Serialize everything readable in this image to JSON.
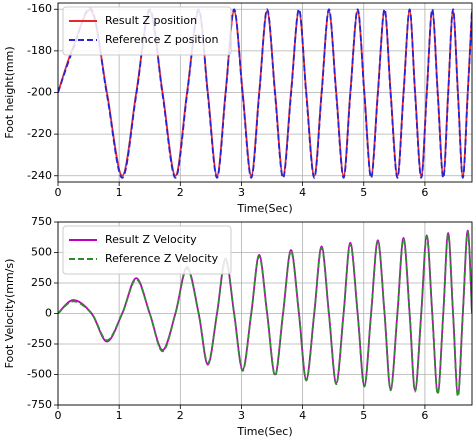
{
  "chart_data": [
    {
      "type": "line",
      "ylabel": "Foot height(mm)",
      "xlabel": "Time(Sec)",
      "x": [
        0,
        0.25,
        0.55,
        0.8,
        1.05,
        1.28,
        1.5,
        1.71,
        1.92,
        2.11,
        2.3,
        2.45,
        2.6,
        2.74,
        2.88,
        3.02,
        3.16,
        3.29,
        3.42,
        3.55,
        3.68,
        3.81,
        3.94,
        4.06,
        4.19,
        4.31,
        4.43,
        4.55,
        4.67,
        4.78,
        4.9,
        5.01,
        5.12,
        5.23,
        5.34,
        5.44,
        5.55,
        5.65,
        5.75,
        5.84,
        5.94,
        6.03,
        6.12,
        6.21,
        6.3,
        6.38,
        6.46,
        6.54,
        6.62,
        6.7,
        6.77
      ],
      "series": [
        {
          "name": "Result Z position",
          "color": "#e8262b",
          "dash": false,
          "values": [
            -200,
            -178,
            -161,
            -200,
            -240,
            -200,
            -161,
            -200,
            -240,
            -200,
            -161,
            -200,
            -240,
            -200,
            -161,
            -200,
            -240,
            -200,
            -161,
            -200,
            -240,
            -200,
            -161,
            -200,
            -240,
            -200,
            -161,
            -200,
            -240,
            -200,
            -161,
            -200,
            -240,
            -200,
            -161,
            -200,
            -240,
            -200,
            -161,
            -200,
            -240,
            -200,
            -161,
            -200,
            -240,
            -200,
            -161,
            -200,
            -240,
            -200,
            -161
          ]
        },
        {
          "name": "Reference Z position",
          "color": "#2424d8",
          "dash": true,
          "values": [
            -200,
            -179,
            -160,
            -201,
            -241,
            -201,
            -160,
            -201,
            -241,
            -201,
            -160,
            -201,
            -241,
            -201,
            -160,
            -201,
            -241,
            -201,
            -160,
            -201,
            -241,
            -201,
            -160,
            -201,
            -241,
            -201,
            -160,
            -201,
            -241,
            -201,
            -160,
            -201,
            -241,
            -201,
            -160,
            -201,
            -241,
            -201,
            -160,
            -201,
            -241,
            -201,
            -160,
            -201,
            -241,
            -201,
            -160,
            -201,
            -241,
            -201,
            -160
          ]
        }
      ],
      "xlim": [
        0,
        6.77
      ],
      "ylim": [
        -243,
        -157
      ],
      "xticks": [
        0,
        1,
        2,
        3,
        4,
        5,
        6
      ],
      "yticks": [
        -240,
        -220,
        -200,
        -180,
        -160
      ],
      "grid": true,
      "legend": "upper-left"
    },
    {
      "type": "line",
      "ylabel": "Foot Velocity(mm/s)",
      "xlabel": "Time(Sec)",
      "x": [
        0,
        0.25,
        0.55,
        0.8,
        1.05,
        1.28,
        1.5,
        1.71,
        1.92,
        2.11,
        2.3,
        2.45,
        2.6,
        2.74,
        2.88,
        3.02,
        3.16,
        3.29,
        3.42,
        3.55,
        3.68,
        3.81,
        3.94,
        4.06,
        4.19,
        4.31,
        4.43,
        4.55,
        4.67,
        4.78,
        4.9,
        5.01,
        5.12,
        5.23,
        5.34,
        5.44,
        5.55,
        5.65,
        5.75,
        5.84,
        5.94,
        6.03,
        6.12,
        6.21,
        6.3,
        6.38,
        6.46,
        6.54,
        6.62,
        6.7,
        6.77
      ],
      "series": [
        {
          "name": "Result Z Velocity",
          "color": "#c000c0",
          "dash": false,
          "values": [
            0,
            110,
            0,
            -230,
            0,
            290,
            0,
            -300,
            0,
            380,
            0,
            -420,
            0,
            450,
            0,
            -460,
            0,
            480,
            0,
            -500,
            0,
            520,
            0,
            -540,
            0,
            550,
            0,
            -570,
            0,
            580,
            0,
            -590,
            0,
            600,
            0,
            -620,
            0,
            620,
            0,
            -630,
            0,
            640,
            0,
            -650,
            0,
            660,
            0,
            -660,
            0,
            680,
            0
          ]
        },
        {
          "name": "Reference Z Velocity",
          "color": "#2e8b2e",
          "dash": true,
          "values": [
            0,
            100,
            0,
            -220,
            0,
            280,
            0,
            -310,
            0,
            370,
            0,
            -410,
            0,
            440,
            0,
            -470,
            0,
            470,
            0,
            -510,
            0,
            510,
            0,
            -550,
            0,
            540,
            0,
            -580,
            0,
            570,
            0,
            -600,
            0,
            590,
            0,
            -630,
            0,
            610,
            0,
            -640,
            0,
            630,
            0,
            -660,
            0,
            650,
            0,
            -680,
            0,
            670,
            0
          ]
        }
      ],
      "xlim": [
        0,
        6.77
      ],
      "ylim": [
        -750,
        750
      ],
      "xticks": [
        0,
        1,
        2,
        3,
        4,
        5,
        6
      ],
      "yticks": [
        -750,
        -500,
        -250,
        0,
        250,
        500,
        750
      ],
      "grid": true,
      "legend": "upper-left"
    }
  ]
}
